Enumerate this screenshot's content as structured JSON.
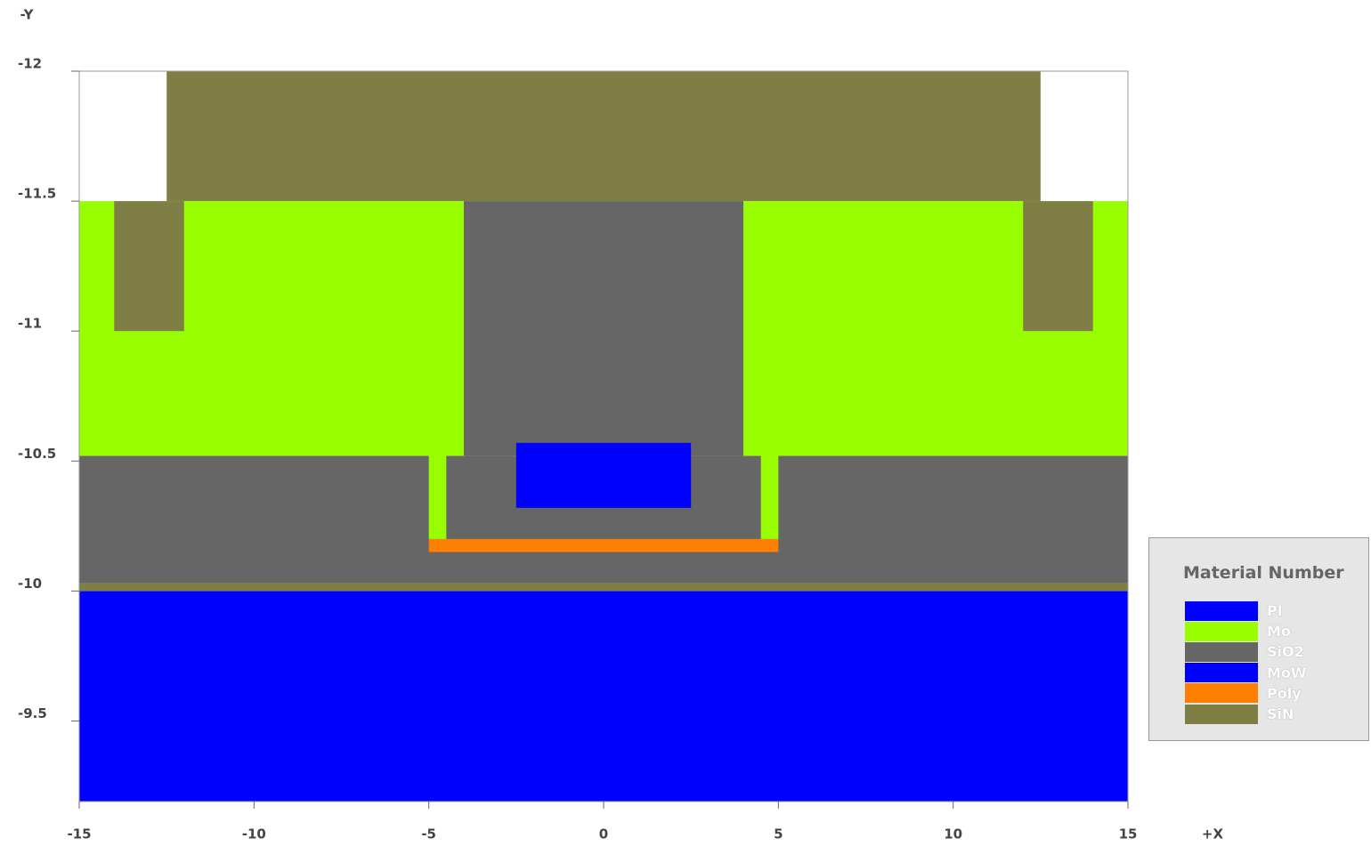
{
  "chart_data": {
    "type": "structure",
    "x_label": "+X",
    "y_label": "-Y",
    "xlim": [
      -15,
      15
    ],
    "ylim": [
      -12,
      -9.19
    ],
    "y_inverted": true,
    "xticks": [
      -15,
      -10,
      -5,
      0,
      5,
      10,
      15
    ],
    "yticks": [
      -12,
      -11.5,
      -11,
      -10.5,
      -10,
      -9.5
    ],
    "legend_title": "Material Number",
    "legend_position": "right",
    "series": [
      {
        "name": "PI",
        "color": "#0000ff",
        "rects": [
          [
            -15,
            15,
            -10,
            -9.19
          ]
        ]
      },
      {
        "name": "Mo",
        "color": "#99ff00",
        "rects": [
          [
            -15,
            -4,
            -11.5,
            -10.52
          ],
          [
            4,
            15,
            -11.5,
            -10.52
          ],
          [
            -5,
            -4.5,
            -10.57,
            -10.2
          ],
          [
            4.5,
            5,
            -10.57,
            -10.2
          ]
        ]
      },
      {
        "name": "SiO2",
        "color": "#666666",
        "rects": [
          [
            -4,
            4,
            -11.5,
            -10.52
          ],
          [
            -15,
            15,
            -10.52,
            -10.03
          ]
        ]
      },
      {
        "name": "MoW",
        "color": "#0000ff",
        "rects": [
          [
            -2.5,
            2.5,
            -10.57,
            -10.32
          ]
        ]
      },
      {
        "name": "Poly",
        "color": "#ff8000",
        "rects": [
          [
            -5,
            5,
            -10.2,
            -10.15
          ]
        ]
      },
      {
        "name": "SiN",
        "color": "#7f7f45",
        "rects": [
          [
            -12.5,
            12.5,
            -12,
            -11.5
          ],
          [
            -14,
            -12,
            -11.5,
            -11
          ],
          [
            12,
            14,
            -11.5,
            -11
          ],
          [
            -15,
            15,
            -10.03,
            -10
          ]
        ]
      }
    ]
  }
}
